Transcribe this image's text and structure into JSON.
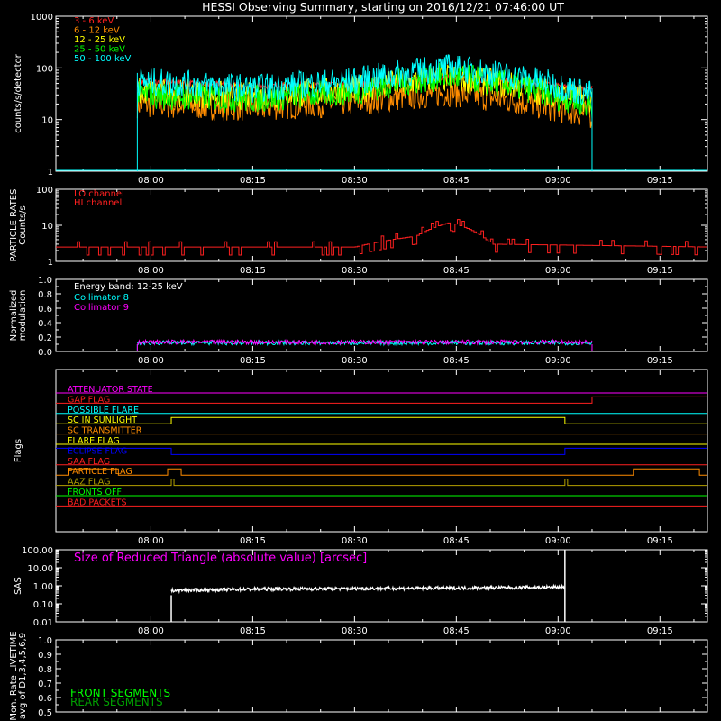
{
  "title": "HESSI Observing Summary, starting on 2016/12/21 07:46:00 UT",
  "x_ticks": [
    "08:00",
    "08:15",
    "08:30",
    "08:45",
    "09:00",
    "09:15"
  ],
  "colors": {
    "red": "#ff2020",
    "orange": "#ff8c00",
    "yellow": "#ffff00",
    "green": "#00ff00",
    "cyan": "#00ffff",
    "magenta": "#ff00ff",
    "blue": "#0000ff",
    "olive": "#b4a000",
    "white": "#ffffff"
  },
  "chart_data": [
    {
      "id": "count-rates",
      "type": "line",
      "ylabel": "counts/s/detector",
      "yscale": "log",
      "ylim": [
        1,
        1000
      ],
      "yticks": [
        "1",
        "10",
        "100",
        "1000"
      ],
      "x_range": [
        "07:46",
        "09:22"
      ],
      "data_start": "07:58",
      "data_end": "09:05",
      "series": [
        {
          "name": "3 - 6 keV",
          "color": "#ff2020",
          "time": [
            "07:58",
            "08:15",
            "08:30",
            "08:44",
            "09:00",
            "09:05"
          ],
          "values": [
            55,
            45,
            48,
            65,
            45,
            40
          ]
        },
        {
          "name": "6 - 12 keV",
          "color": "#ff8c00",
          "time": [
            "07:58",
            "08:15",
            "08:30",
            "08:44",
            "09:00",
            "09:05"
          ],
          "values": [
            20,
            17,
            22,
            33,
            16,
            12
          ]
        },
        {
          "name": "12 - 25 keV",
          "color": "#ffff00",
          "time": [
            "07:58",
            "08:15",
            "08:30",
            "08:44",
            "09:00",
            "09:05"
          ],
          "values": [
            35,
            28,
            38,
            65,
            30,
            25
          ]
        },
        {
          "name": "25 - 50 keV",
          "color": "#00ff00",
          "time": [
            "07:58",
            "08:15",
            "08:30",
            "08:44",
            "09:00",
            "09:05"
          ],
          "values": [
            30,
            25,
            35,
            70,
            28,
            18
          ]
        },
        {
          "name": "50 - 100 keV",
          "color": "#00ffff",
          "time": [
            "07:58",
            "08:15",
            "08:30",
            "08:44",
            "09:00",
            "09:05"
          ],
          "values": [
            55,
            40,
            55,
            100,
            45,
            30
          ]
        }
      ]
    },
    {
      "id": "particle-rates",
      "type": "line",
      "ylabel": "PARTICLE RATES Counts/s",
      "yscale": "log",
      "ylim": [
        1,
        100
      ],
      "yticks": [
        "1",
        "10",
        "100"
      ],
      "series": [
        {
          "name": "LO channel",
          "color": "#ff2020",
          "time": [
            "07:46",
            "08:30",
            "08:39",
            "08:44",
            "08:50",
            "09:22"
          ],
          "values": [
            2.5,
            2.5,
            5,
            12,
            3,
            2.5
          ]
        },
        {
          "name": "HI channel",
          "color": "#ff2020"
        }
      ]
    },
    {
      "id": "modulation",
      "type": "line",
      "ylabel": "Normalized modulation",
      "ylim": [
        0,
        1
      ],
      "yticks": [
        "0.0",
        "0.2",
        "0.4",
        "0.6",
        "0.8",
        "1.0"
      ],
      "annotations": [
        "Energy band: 12-25 keV"
      ],
      "series": [
        {
          "name": "Collimator 8",
          "color": "#00ffff",
          "time": [
            "07:58",
            "09:05"
          ],
          "values": [
            0.12,
            0.12
          ]
        },
        {
          "name": "Collimator 9",
          "color": "#ff00ff",
          "time": [
            "07:58",
            "09:05"
          ],
          "values": [
            0.13,
            0.13
          ]
        }
      ]
    },
    {
      "id": "flags",
      "type": "line",
      "ylabel": "Flags",
      "series": [
        {
          "name": "ATTENUATOR STATE",
          "color": "#ff00ff",
          "state": "off"
        },
        {
          "name": "GAP FLAG",
          "color": "#ff2020",
          "on_after": "09:05"
        },
        {
          "name": "POSSIBLE FLARE",
          "color": "#00ffff",
          "state": "off"
        },
        {
          "name": "SC IN SUNLIGHT",
          "color": "#ffff00",
          "on_between": [
            "08:03",
            "09:01"
          ]
        },
        {
          "name": "SC TRANSMITTER",
          "color": "#ff8c00",
          "state": "off"
        },
        {
          "name": "FLARE FLAG",
          "color": "#ffff00",
          "state": "off"
        },
        {
          "name": "ECLIPSE FLAG",
          "color": "#0000ff",
          "on_outside": [
            "08:03",
            "09:01"
          ]
        },
        {
          "name": "SAA FLAG",
          "color": "#ff2020",
          "state": "off"
        },
        {
          "name": "PARTICLE FLAG",
          "color": "#ff8c00",
          "state": "intermittent"
        },
        {
          "name": "AAZ FLAG",
          "color": "#b4a000",
          "pulses": [
            "08:03",
            "09:01"
          ]
        },
        {
          "name": "FRONTS OFF",
          "color": "#00ff00",
          "state": "off"
        },
        {
          "name": "BAD PACKETS",
          "color": "#ff2020",
          "state": "off"
        }
      ]
    },
    {
      "id": "sas",
      "type": "line",
      "ylabel": "SAS",
      "yscale": "log",
      "ylim": [
        0.01,
        100
      ],
      "yticks": [
        "0.01",
        "0.10",
        "1.00",
        "10.00",
        "100.00"
      ],
      "annotations": [
        "Size of Reduced Triangle (absolute value) [arcsec]"
      ],
      "series": [
        {
          "name": "Size of Reduced Triangle",
          "color": "#ffffff",
          "time": [
            "08:03",
            "08:15",
            "08:30",
            "08:45",
            "09:01"
          ],
          "values": [
            0.55,
            0.65,
            0.7,
            0.75,
            0.85
          ]
        }
      ]
    },
    {
      "id": "livetime",
      "type": "line",
      "ylabel": "Mon. Rate LIVETIME avg of D1,3,4,5,6,9",
      "ylim": [
        0.5,
        1.0
      ],
      "yticks": [
        "0.5",
        "0.6",
        "0.7",
        "0.8",
        "0.9",
        "1.0"
      ],
      "series": [
        {
          "name": "FRONT SEGMENTS",
          "color": "#00ff00"
        },
        {
          "name": "REAR SEGMENTS",
          "color": "#00a000"
        }
      ]
    }
  ]
}
